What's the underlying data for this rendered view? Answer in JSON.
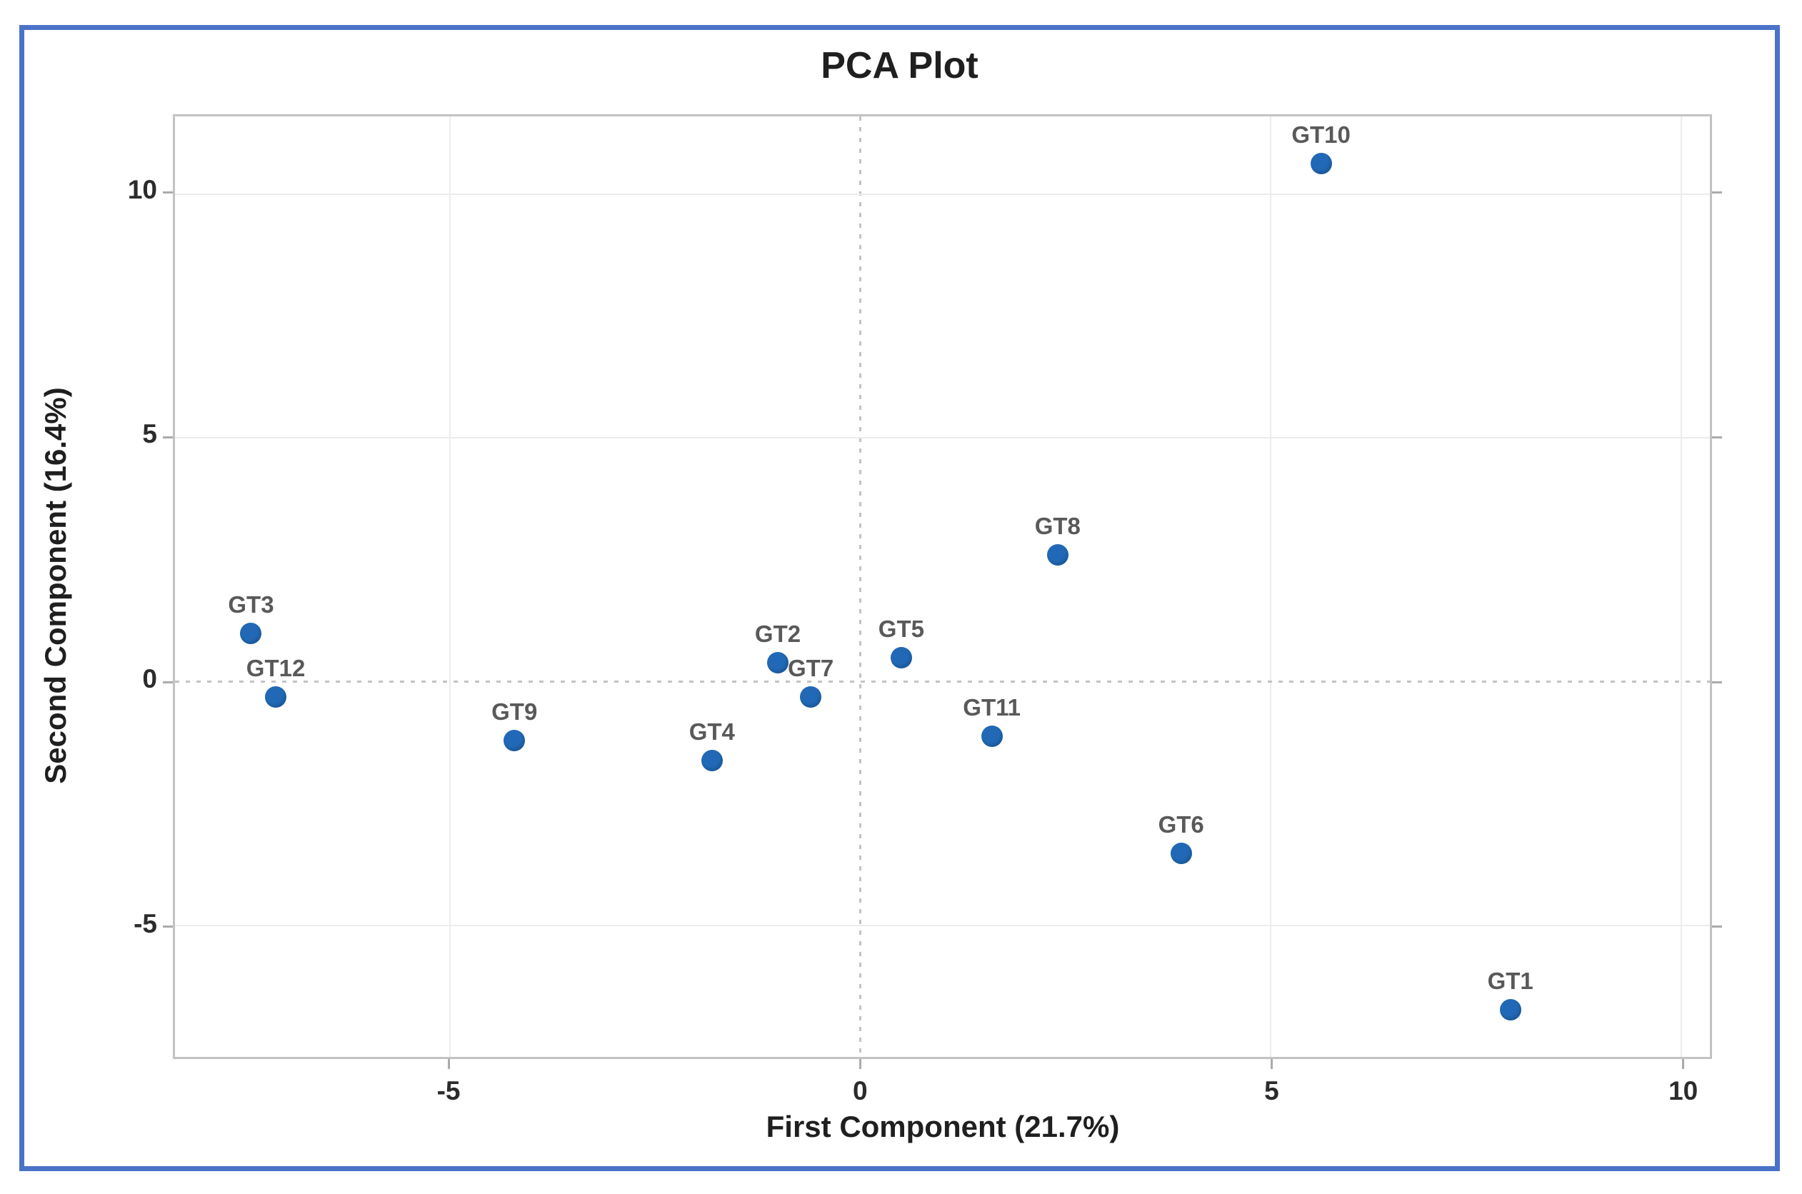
{
  "title": "PCA Plot",
  "chart_data": {
    "type": "scatter",
    "title": "PCA Plot",
    "xlabel": "First Component (21.7%)",
    "ylabel": "Second Component (16.4%)",
    "xlim": [
      -8.35,
      10.35
    ],
    "ylim": [
      -7.7,
      11.6
    ],
    "x_ticks": [
      "-5",
      "0",
      "5",
      "10"
    ],
    "x_tick_values": [
      -5,
      0,
      5,
      10
    ],
    "y_ticks": [
      "10",
      "5",
      "0",
      "-5"
    ],
    "y_tick_values": [
      10,
      5,
      0,
      -5
    ],
    "grid": "light solid gridlines at ticks, dotted reference lines at x=0 and y=0",
    "legend": "none",
    "points": [
      {
        "label": "GT1",
        "x": 7.9,
        "y": -6.7
      },
      {
        "label": "GT2",
        "x": -1.0,
        "y": 0.4
      },
      {
        "label": "GT3",
        "x": -7.4,
        "y": 1.0
      },
      {
        "label": "GT4",
        "x": -1.8,
        "y": -1.6
      },
      {
        "label": "GT5",
        "x": 0.5,
        "y": 0.5
      },
      {
        "label": "GT6",
        "x": 3.9,
        "y": -3.5
      },
      {
        "label": "GT7",
        "x": -0.6,
        "y": -0.3
      },
      {
        "label": "GT8",
        "x": 2.4,
        "y": 2.6
      },
      {
        "label": "GT9",
        "x": -4.2,
        "y": -1.2
      },
      {
        "label": "GT10",
        "x": 5.6,
        "y": 10.6
      },
      {
        "label": "GT11",
        "x": 1.6,
        "y": -1.1
      },
      {
        "label": "GT12",
        "x": -7.1,
        "y": -0.3
      }
    ],
    "colors": {
      "point_fill": "#1d5fa8",
      "point_edge": "#14477e",
      "point_label": "#595959",
      "axis_text": "#2b2b2b",
      "title_text": "#1f1f1f",
      "plot_border": "#c2c2c2",
      "gridline": "#ececec",
      "zero_line": "#c3c3c3",
      "frame_border": "#4a73c8",
      "background": "#ffffff"
    }
  }
}
